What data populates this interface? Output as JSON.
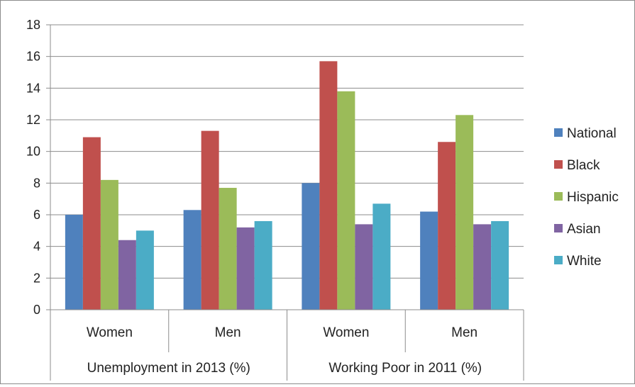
{
  "chart_data": {
    "type": "bar",
    "title": "",
    "xlabel": "",
    "ylabel": "",
    "ylim": [
      0,
      18
    ],
    "yticks": [
      0,
      2,
      4,
      6,
      8,
      10,
      12,
      14,
      16,
      18
    ],
    "grid": true,
    "legend_position": "right",
    "categories": [
      "Women",
      "Men",
      "Women",
      "Men"
    ],
    "groups": [
      {
        "label": "Unemployment in 2013 (%)",
        "categories": [
          0,
          1
        ]
      },
      {
        "label": "Working Poor in 2011 (%)",
        "categories": [
          2,
          3
        ]
      }
    ],
    "series": [
      {
        "name": "National",
        "color": "#4f81bd",
        "values": [
          6.0,
          6.3,
          8.0,
          6.2
        ]
      },
      {
        "name": "Black",
        "color": "#c0504d",
        "values": [
          10.9,
          11.3,
          15.7,
          10.6
        ]
      },
      {
        "name": "Hispanic",
        "color": "#9bbb59",
        "values": [
          8.2,
          7.7,
          13.8,
          12.3
        ]
      },
      {
        "name": "Asian",
        "color": "#8064a2",
        "values": [
          4.4,
          5.2,
          5.4,
          5.4
        ]
      },
      {
        "name": "White",
        "color": "#4bacc6",
        "values": [
          5.0,
          5.6,
          6.7,
          5.6
        ]
      }
    ]
  }
}
